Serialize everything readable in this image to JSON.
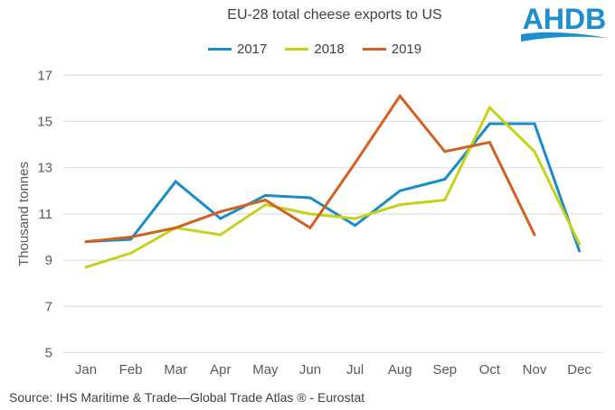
{
  "logo_text": "AHDB",
  "source": "Source: IHS Maritime & Trade—Global Trade Atlas ® - Eurostat",
  "chart_data": {
    "type": "line",
    "title": "EU-28 total cheese exports to US",
    "xlabel": "",
    "ylabel": "Thousand tonnes",
    "ylim": [
      5,
      17
    ],
    "yticks": [
      5,
      7,
      9,
      11,
      13,
      15,
      17
    ],
    "grid": true,
    "legend_position": "top",
    "categories": [
      "Jan",
      "Feb",
      "Mar",
      "Apr",
      "May",
      "Jun",
      "Jul",
      "Aug",
      "Sep",
      "Oct",
      "Nov",
      "Dec"
    ],
    "series": [
      {
        "name": "2017",
        "color": "#1a8cc7",
        "values": [
          9.8,
          9.9,
          12.4,
          10.8,
          11.8,
          11.7,
          10.5,
          12.0,
          12.5,
          14.9,
          14.9,
          9.4
        ]
      },
      {
        "name": "2018",
        "color": "#c5d21b",
        "values": [
          8.7,
          9.3,
          10.4,
          10.1,
          11.4,
          11.0,
          10.8,
          11.4,
          11.6,
          15.6,
          13.7,
          9.7
        ]
      },
      {
        "name": "2019",
        "color": "#d2601f",
        "values": [
          9.8,
          10.0,
          10.4,
          11.1,
          11.6,
          10.4,
          13.2,
          16.1,
          13.7,
          14.1,
          10.1,
          null
        ]
      }
    ]
  }
}
